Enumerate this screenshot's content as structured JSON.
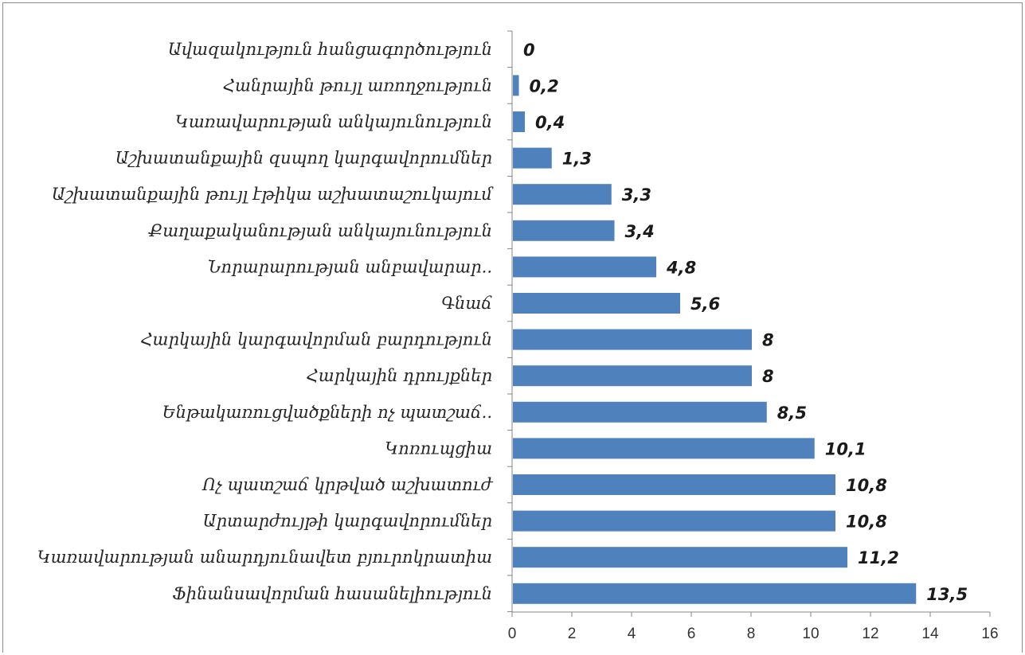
{
  "chart_data": {
    "type": "bar",
    "orientation": "horizontal",
    "categories": [
      "Ավազակություն  հանցագործություն",
      "Հանրային թույլ առողջություն",
      "Կառավարության անկայունություն",
      "Աշխատանքային զսպող կարգավորումներ",
      "Աշխատանքային թույլ էթիկա աշխատաշուկայում",
      "Քաղաքականության անկայունություն",
      "Նորարարության անբավարար..",
      "Գնաճ",
      "Հարկային կարգավորման բարդություն",
      "Հարկային դրույքներ",
      "Ենթակառուցվածքների ոչ պատշաճ..",
      "Կոռուպցիա",
      "Ոչ պատշաճ կրթված աշխատուժ",
      "Արտարժույթի կարգավորումներ",
      "Կառավարության անարդյունավետ բյուրոկրատիա",
      "Ֆինանսավորման հասանելիություն"
    ],
    "values": [
      0,
      0.2,
      0.4,
      1.3,
      3.3,
      3.4,
      4.8,
      5.6,
      8,
      8,
      8.5,
      10.1,
      10.8,
      10.8,
      11.2,
      13.5
    ],
    "value_labels": [
      "0",
      "0,2",
      "0,4",
      "1,3",
      "3,3",
      "3,4",
      "4,8",
      "5,6",
      "8",
      "8",
      "8,5",
      "10,1",
      "10,8",
      "10,8",
      "11,2",
      "13,5"
    ],
    "xlim": [
      0,
      16
    ],
    "xticks": [
      "0",
      "2",
      "4",
      "6",
      "8",
      "10",
      "12",
      "14",
      "16"
    ],
    "title": "",
    "xlabel": "",
    "ylabel": "",
    "grid": false,
    "legend": "none",
    "bar_color": "#4f81bd",
    "axis_color": "#868686"
  }
}
